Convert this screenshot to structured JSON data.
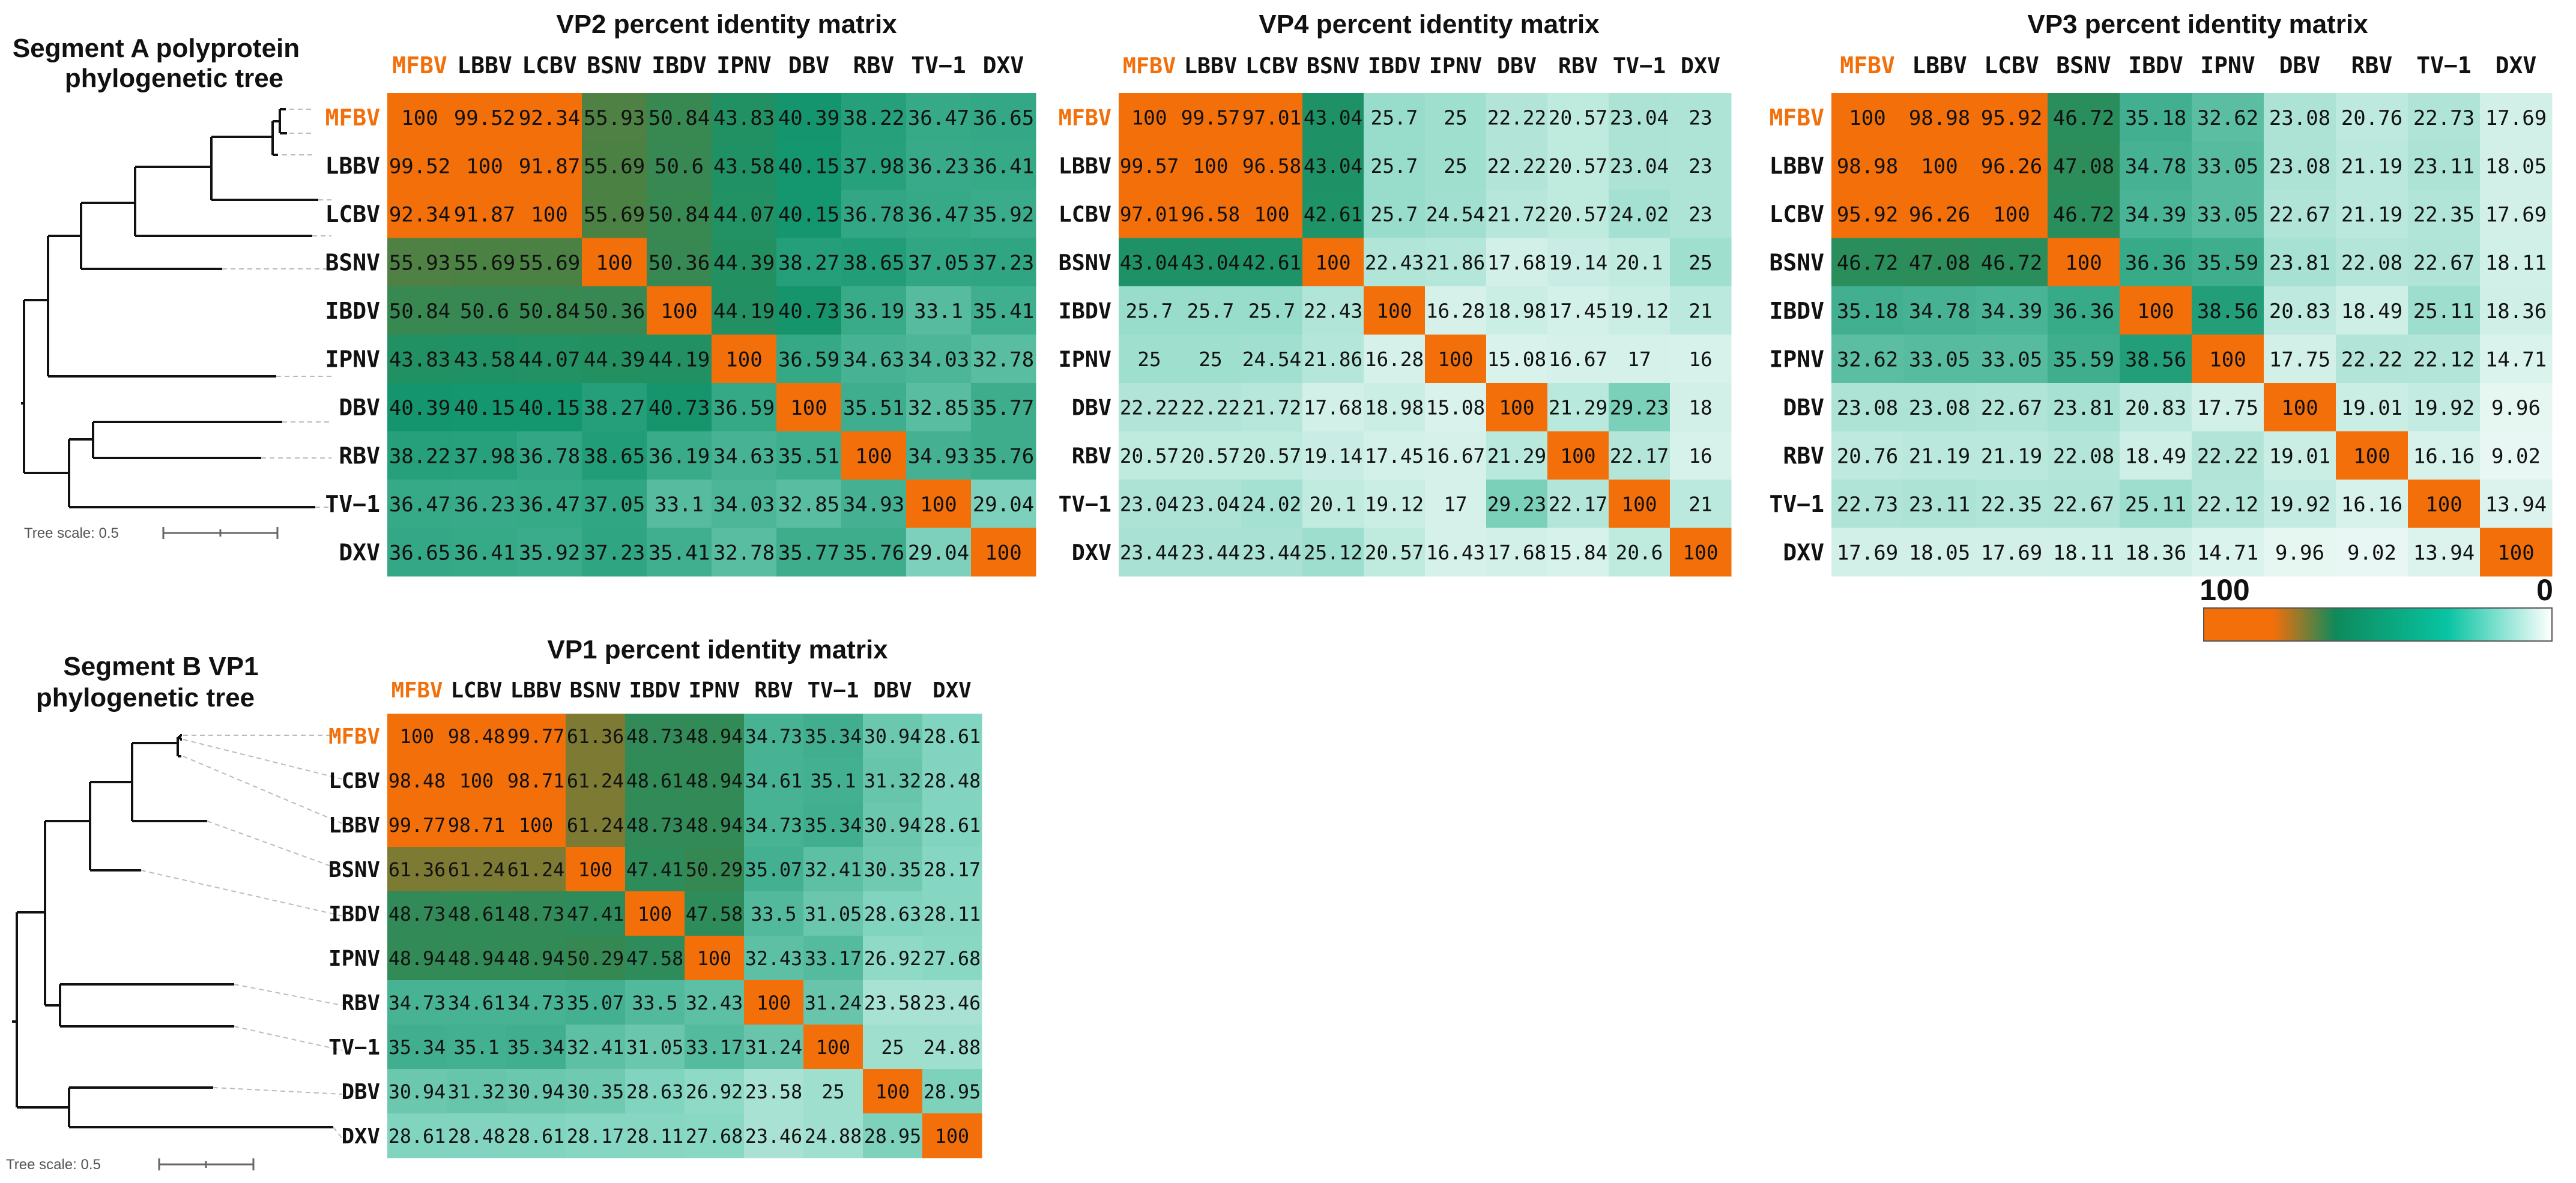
{
  "colors": {
    "highlight": "#f26f0a",
    "text": "#111111",
    "branch": "#111111",
    "scale": "#666666",
    "dash": "#bbbbbb"
  },
  "trees": [
    {
      "title_lines": [
        "Segment A polyprotein",
        "phylogenetic tree"
      ],
      "scale_label": "Tree scale: 0.5"
    },
    {
      "title_lines": [
        "Segment B VP1",
        "phylogenetic tree"
      ],
      "scale_label": "Tree scale: 0.5"
    }
  ],
  "legend": {
    "max_label": "100",
    "min_label": "0"
  },
  "chart_data": [
    {
      "type": "heatmap",
      "title": "VP2 percent identity matrix",
      "labels": [
        "MFBV",
        "LBBV",
        "LCBV",
        "BSNV",
        "IBDV",
        "IPNV",
        "DBV",
        "RBV",
        "TV−1",
        "DXV"
      ],
      "highlight": "MFBV",
      "color_range": [
        0,
        100
      ],
      "matrix": [
        [
          100,
          99.52,
          92.34,
          55.93,
          50.84,
          43.83,
          40.39,
          38.22,
          36.47,
          36.65
        ],
        [
          99.52,
          100,
          91.87,
          55.69,
          50.6,
          43.58,
          40.15,
          37.98,
          36.23,
          36.41
        ],
        [
          92.34,
          91.87,
          100,
          55.69,
          50.84,
          44.07,
          40.15,
          36.78,
          36.47,
          35.92
        ],
        [
          55.93,
          55.69,
          55.69,
          100,
          50.36,
          44.39,
          38.27,
          38.65,
          37.05,
          37.23
        ],
        [
          50.84,
          50.6,
          50.84,
          50.36,
          100,
          44.19,
          40.73,
          36.19,
          33.1,
          35.41
        ],
        [
          43.83,
          43.58,
          44.07,
          44.39,
          44.19,
          100,
          36.59,
          34.63,
          34.03,
          32.78
        ],
        [
          40.39,
          40.15,
          40.15,
          38.27,
          40.73,
          36.59,
          100,
          35.51,
          32.85,
          35.77
        ],
        [
          38.22,
          37.98,
          36.78,
          38.65,
          36.19,
          34.63,
          35.51,
          100,
          34.93,
          35.76
        ],
        [
          36.47,
          36.23,
          36.47,
          37.05,
          33.1,
          34.03,
          32.85,
          34.93,
          100,
          29.04
        ],
        [
          36.65,
          36.41,
          35.92,
          37.23,
          35.41,
          32.78,
          35.77,
          35.76,
          29.04,
          100
        ]
      ]
    },
    {
      "type": "heatmap",
      "title": "VP4 percent identity matrix",
      "labels": [
        "MFBV",
        "LBBV",
        "LCBV",
        "BSNV",
        "IBDV",
        "IPNV",
        "DBV",
        "RBV",
        "TV−1",
        "DXV"
      ],
      "highlight": "MFBV",
      "color_range": [
        0,
        100
      ],
      "matrix": [
        [
          100,
          99.57,
          97.01,
          43.04,
          25.7,
          25,
          22.22,
          20.57,
          23.04,
          23
        ],
        [
          99.57,
          100,
          96.58,
          43.04,
          25.7,
          25,
          22.22,
          20.57,
          23.04,
          23
        ],
        [
          97.01,
          96.58,
          100,
          42.61,
          25.7,
          24.54,
          21.72,
          20.57,
          24.02,
          23
        ],
        [
          43.04,
          43.04,
          42.61,
          100,
          22.43,
          21.86,
          17.68,
          19.14,
          20.1,
          25
        ],
        [
          25.7,
          25.7,
          25.7,
          22.43,
          100,
          16.28,
          18.98,
          17.45,
          19.12,
          21
        ],
        [
          25,
          25,
          24.54,
          21.86,
          16.28,
          100,
          15.08,
          16.67,
          17,
          16
        ],
        [
          22.22,
          22.22,
          21.72,
          17.68,
          18.98,
          15.08,
          100,
          21.29,
          29.23,
          18
        ],
        [
          20.57,
          20.57,
          20.57,
          19.14,
          17.45,
          16.67,
          21.29,
          100,
          22.17,
          16
        ],
        [
          23.04,
          23.04,
          24.02,
          20.1,
          19.12,
          17,
          29.23,
          22.17,
          100,
          21
        ],
        [
          23.44,
          23.44,
          23.44,
          25.12,
          20.57,
          16.43,
          17.68,
          15.84,
          20.6,
          100
        ]
      ]
    },
    {
      "type": "heatmap",
      "title": "VP3 percent identity matrix",
      "labels": [
        "MFBV",
        "LBBV",
        "LCBV",
        "BSNV",
        "IBDV",
        "IPNV",
        "DBV",
        "RBV",
        "TV−1",
        "DXV"
      ],
      "highlight": "MFBV",
      "color_range": [
        0,
        100
      ],
      "matrix": [
        [
          100,
          98.98,
          95.92,
          46.72,
          35.18,
          32.62,
          23.08,
          20.76,
          22.73,
          17.69
        ],
        [
          98.98,
          100,
          96.26,
          47.08,
          34.78,
          33.05,
          23.08,
          21.19,
          23.11,
          18.05
        ],
        [
          95.92,
          96.26,
          100,
          46.72,
          34.39,
          33.05,
          22.67,
          21.19,
          22.35,
          17.69
        ],
        [
          46.72,
          47.08,
          46.72,
          100,
          36.36,
          35.59,
          23.81,
          22.08,
          22.67,
          18.11
        ],
        [
          35.18,
          34.78,
          34.39,
          36.36,
          100,
          38.56,
          20.83,
          18.49,
          25.11,
          18.36
        ],
        [
          32.62,
          33.05,
          33.05,
          35.59,
          38.56,
          100,
          17.75,
          22.22,
          22.12,
          14.71
        ],
        [
          23.08,
          23.08,
          22.67,
          23.81,
          20.83,
          17.75,
          100,
          19.01,
          19.92,
          9.96
        ],
        [
          20.76,
          21.19,
          21.19,
          22.08,
          18.49,
          22.22,
          19.01,
          100,
          16.16,
          9.02
        ],
        [
          22.73,
          23.11,
          22.35,
          22.67,
          25.11,
          22.12,
          19.92,
          16.16,
          100,
          13.94
        ],
        [
          17.69,
          18.05,
          17.69,
          18.11,
          18.36,
          14.71,
          9.96,
          9.02,
          13.94,
          100
        ]
      ]
    },
    {
      "type": "heatmap",
      "title": "VP1 percent identity matrix",
      "labels": [
        "MFBV",
        "LCBV",
        "LBBV",
        "BSNV",
        "IBDV",
        "IPNV",
        "RBV",
        "TV−1",
        "DBV",
        "DXV"
      ],
      "highlight": "MFBV",
      "color_range": [
        0,
        100
      ],
      "matrix": [
        [
          100,
          98.48,
          99.77,
          61.36,
          48.73,
          48.94,
          34.73,
          35.34,
          30.94,
          28.61
        ],
        [
          98.48,
          100,
          98.71,
          61.24,
          48.61,
          48.94,
          34.61,
          35.1,
          31.32,
          28.48
        ],
        [
          99.77,
          98.71,
          100,
          61.24,
          48.73,
          48.94,
          34.73,
          35.34,
          30.94,
          28.61
        ],
        [
          61.36,
          61.24,
          61.24,
          100,
          47.41,
          50.29,
          35.07,
          32.41,
          30.35,
          28.17
        ],
        [
          48.73,
          48.61,
          48.73,
          47.41,
          100,
          47.58,
          33.5,
          31.05,
          28.63,
          28.11
        ],
        [
          48.94,
          48.94,
          48.94,
          50.29,
          47.58,
          100,
          32.43,
          33.17,
          26.92,
          27.68
        ],
        [
          34.73,
          34.61,
          34.73,
          35.07,
          33.5,
          32.43,
          100,
          31.24,
          23.58,
          23.46
        ],
        [
          35.34,
          35.1,
          35.34,
          32.41,
          31.05,
          33.17,
          31.24,
          100,
          25,
          24.88
        ],
        [
          30.94,
          31.32,
          30.94,
          30.35,
          28.63,
          26.92,
          23.58,
          25,
          100,
          28.95
        ],
        [
          28.61,
          28.48,
          28.61,
          28.17,
          28.11,
          27.68,
          23.46,
          24.88,
          28.95,
          100
        ]
      ]
    }
  ]
}
